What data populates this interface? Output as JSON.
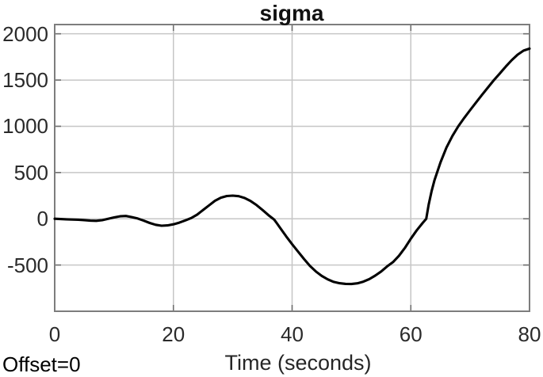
{
  "figure": {
    "background": "#ffffff"
  },
  "chart_data": {
    "type": "line",
    "title": "sigma",
    "xlabel": "Time (seconds)",
    "ylabel": "",
    "annotation_offset": "Offset=0",
    "xlim": [
      0,
      80
    ],
    "ylim": [
      -1000,
      2100
    ],
    "xticks": [
      0,
      20,
      40,
      60,
      80
    ],
    "yticks": [
      -500,
      0,
      500,
      1000,
      1500,
      2000
    ],
    "grid": true,
    "legend": "none",
    "colors": {
      "line": "#000000",
      "grid": "#c6c6c6",
      "axis_border": "#7d7d7d",
      "tick_mark": "#6f6f6f",
      "tick_label": "#2a2a2a",
      "title": "#111111"
    },
    "series": [
      {
        "name": "sigma",
        "points": [
          [
            0,
            0
          ],
          [
            1,
            -3
          ],
          [
            2,
            -6
          ],
          [
            3,
            -8
          ],
          [
            4,
            -10
          ],
          [
            5,
            -14
          ],
          [
            6,
            -20
          ],
          [
            7,
            -22
          ],
          [
            8,
            -15
          ],
          [
            9,
            0
          ],
          [
            10,
            15
          ],
          [
            11,
            27
          ],
          [
            12,
            30
          ],
          [
            13,
            18
          ],
          [
            14,
            3
          ],
          [
            15,
            -20
          ],
          [
            16,
            -45
          ],
          [
            17,
            -65
          ],
          [
            18,
            -75
          ],
          [
            19,
            -72
          ],
          [
            20,
            -60
          ],
          [
            21,
            -42
          ],
          [
            22,
            -18
          ],
          [
            23,
            8
          ],
          [
            24,
            45
          ],
          [
            25,
            95
          ],
          [
            26,
            145
          ],
          [
            27,
            195
          ],
          [
            28,
            228
          ],
          [
            29,
            246
          ],
          [
            30,
            250
          ],
          [
            31,
            244
          ],
          [
            32,
            225
          ],
          [
            33,
            192
          ],
          [
            34,
            148
          ],
          [
            35,
            95
          ],
          [
            36,
            40
          ],
          [
            37,
            -10
          ],
          [
            37.4,
            -45
          ],
          [
            38,
            -100
          ],
          [
            39,
            -190
          ],
          [
            40,
            -275
          ],
          [
            41,
            -355
          ],
          [
            42,
            -435
          ],
          [
            43,
            -510
          ],
          [
            44,
            -570
          ],
          [
            45,
            -618
          ],
          [
            46,
            -655
          ],
          [
            47,
            -682
          ],
          [
            48,
            -697
          ],
          [
            49,
            -704
          ],
          [
            50,
            -705
          ],
          [
            51,
            -698
          ],
          [
            52,
            -680
          ],
          [
            53,
            -652
          ],
          [
            54,
            -615
          ],
          [
            55,
            -570
          ],
          [
            56,
            -515
          ],
          [
            57,
            -468
          ],
          [
            58,
            -400
          ],
          [
            59,
            -315
          ],
          [
            60,
            -215
          ],
          [
            61,
            -125
          ],
          [
            62,
            -45
          ],
          [
            62.6,
            0
          ],
          [
            63,
            150
          ],
          [
            63.5,
            300
          ],
          [
            64,
            420
          ],
          [
            65,
            610
          ],
          [
            66,
            770
          ],
          [
            67,
            895
          ],
          [
            68,
            1000
          ],
          [
            69,
            1090
          ],
          [
            70,
            1175
          ],
          [
            71,
            1258
          ],
          [
            72,
            1340
          ],
          [
            73,
            1420
          ],
          [
            74,
            1500
          ],
          [
            75,
            1572
          ],
          [
            76,
            1645
          ],
          [
            77,
            1715
          ],
          [
            78,
            1775
          ],
          [
            79,
            1818
          ],
          [
            80,
            1840
          ]
        ]
      }
    ]
  }
}
